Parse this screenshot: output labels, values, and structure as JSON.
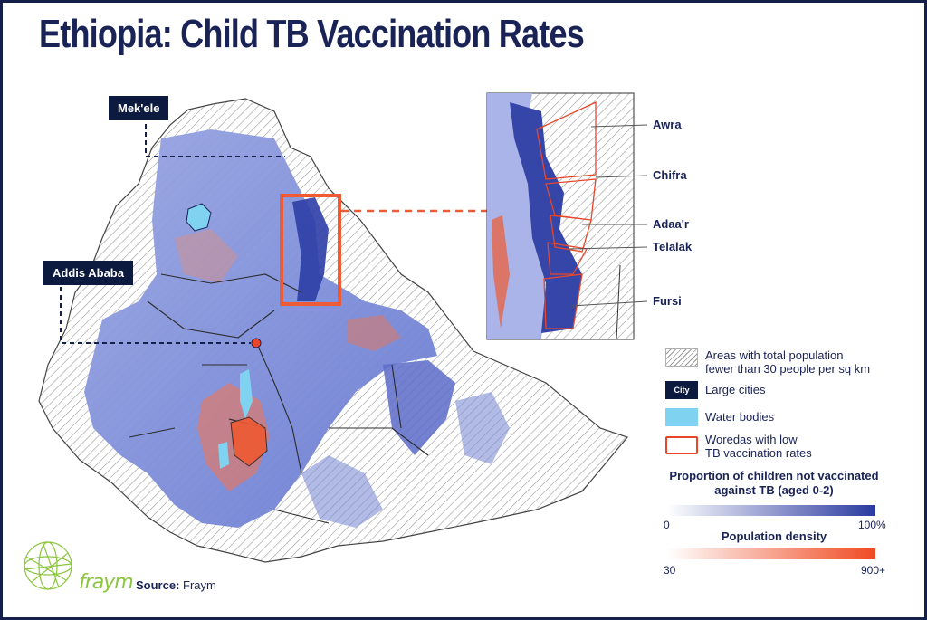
{
  "title": "Ethiopia: Child TB Vaccination Rates",
  "cities": [
    {
      "name": "Mek'ele"
    },
    {
      "name": "Addis Ababa"
    }
  ],
  "inset_labels": [
    "Awra",
    "Chifra",
    "Adaa'r",
    "Telalak",
    "Fursi"
  ],
  "legend": {
    "low_pop": "Areas with total population\nfewer than 30 people per sq km",
    "city_swatch": "City",
    "large_cities": "Large cities",
    "water": "Water bodies",
    "woredas": "Woredas with low\nTB vaccination rates"
  },
  "scale_vaccination": {
    "title": "Proportion of children not vaccinated\nagainst TB (aged 0-2)",
    "min_label": "0",
    "max_label": "100%"
  },
  "scale_density": {
    "title": "Population density",
    "min_label": "30",
    "max_label": "900+"
  },
  "logo": "fraym",
  "source": {
    "label": "Source:",
    "value": "Fraym"
  },
  "colors": {
    "navy": "#14204a",
    "vacc_high": "#2a3aa0",
    "density_high": "#f04a22",
    "water": "#7fd3f0",
    "woreda_outline": "#e8462a",
    "logo_green": "#8cc63f"
  }
}
